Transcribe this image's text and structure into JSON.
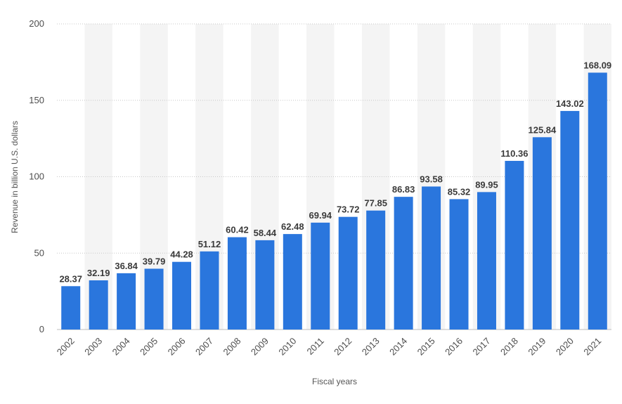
{
  "chart_data": {
    "type": "bar",
    "categories": [
      "2002",
      "2003",
      "2004",
      "2005",
      "2006",
      "2007",
      "2008",
      "2009",
      "2010",
      "2011",
      "2012",
      "2013",
      "2014",
      "2015",
      "2016",
      "2017",
      "2018",
      "2019",
      "2020",
      "2021"
    ],
    "values": [
      28.37,
      32.19,
      36.84,
      39.79,
      44.28,
      51.12,
      60.42,
      58.44,
      62.48,
      69.94,
      73.72,
      77.85,
      86.83,
      93.58,
      85.32,
      89.95,
      110.36,
      125.84,
      143.02,
      168.09
    ],
    "data_labels": [
      "28.37",
      "32.19",
      "36.84",
      "39.79",
      "44.28",
      "51.12",
      "60.42",
      "58.44",
      "62.48",
      "69.94",
      "73.72",
      "77.85",
      "86.83",
      "93.58",
      "85.32",
      "89.95",
      "110.36",
      "125.84",
      "143.02",
      "168.09"
    ],
    "yticks": [
      0,
      50,
      100,
      150,
      200
    ],
    "ylim": [
      0,
      200
    ],
    "xlabel": "Fiscal years",
    "ylabel": "Revenue in billion U.S. dollars",
    "grid": true,
    "colors": {
      "bar": "#2a76dd",
      "band": "#f4f4f4",
      "grid": "#c8c8c8"
    }
  }
}
